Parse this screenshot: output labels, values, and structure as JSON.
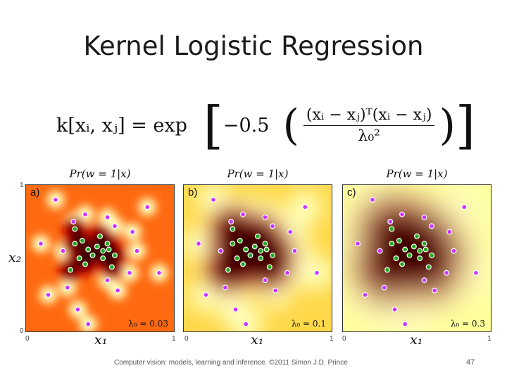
{
  "slide": {
    "title": "Kernel Logistic Regression",
    "footer": "Computer vision: models, learning and inference.  ©2011 Simon J.D. Prince",
    "page_number": "47"
  },
  "equation": {
    "lhs": "k[xᵢ, xⱼ] = exp",
    "coef": "−0.5",
    "numerator": "(xᵢ − xⱼ)ᵀ(xᵢ − xⱼ)",
    "denominator": "λ₀²"
  },
  "axes": {
    "y_label": "x₂",
    "x_label": "x₁",
    "tick_zero": "0",
    "tick_one": "1",
    "y_top_tick": "1"
  },
  "panels": [
    {
      "label": "a)",
      "title": "Pr(w = 1|x)",
      "lambda_text": "λ₀ = 0.03",
      "lambda": 0.03
    },
    {
      "label": "b)",
      "title": "Pr(w = 1|x)",
      "lambda_text": "λ₀ = 0.1",
      "lambda": 0.1
    },
    {
      "label": "c)",
      "title": "Pr(w = 1|x)",
      "lambda_text": "λ₀ = 0.3",
      "lambda": 0.3
    }
  ],
  "colors": {
    "class0_points": "#cc33ff",
    "class1_points": "#22aa22",
    "high_prob": "#111111",
    "low_prob": "#ffff88"
  },
  "points": {
    "class1": [
      [
        0.33,
        0.7
      ],
      [
        0.38,
        0.62
      ],
      [
        0.42,
        0.56
      ],
      [
        0.48,
        0.58
      ],
      [
        0.52,
        0.55
      ],
      [
        0.55,
        0.6
      ],
      [
        0.5,
        0.65
      ],
      [
        0.45,
        0.52
      ],
      [
        0.36,
        0.5
      ],
      [
        0.6,
        0.52
      ],
      [
        0.58,
        0.44
      ],
      [
        0.3,
        0.42
      ],
      [
        0.52,
        0.5
      ],
      [
        0.56,
        0.56
      ],
      [
        0.4,
        0.46
      ],
      [
        0.33,
        0.6
      ]
    ],
    "class0": [
      [
        0.2,
        0.9
      ],
      [
        0.32,
        0.75
      ],
      [
        0.4,
        0.8
      ],
      [
        0.55,
        0.78
      ],
      [
        0.6,
        0.72
      ],
      [
        0.72,
        0.68
      ],
      [
        0.75,
        0.55
      ],
      [
        0.7,
        0.4
      ],
      [
        0.28,
        0.3
      ],
      [
        0.35,
        0.15
      ],
      [
        0.55,
        0.35
      ],
      [
        0.15,
        0.25
      ],
      [
        0.1,
        0.6
      ],
      [
        0.82,
        0.85
      ],
      [
        0.42,
        0.05
      ],
      [
        0.9,
        0.4
      ],
      [
        0.62,
        0.28
      ],
      [
        0.25,
        0.55
      ]
    ]
  }
}
